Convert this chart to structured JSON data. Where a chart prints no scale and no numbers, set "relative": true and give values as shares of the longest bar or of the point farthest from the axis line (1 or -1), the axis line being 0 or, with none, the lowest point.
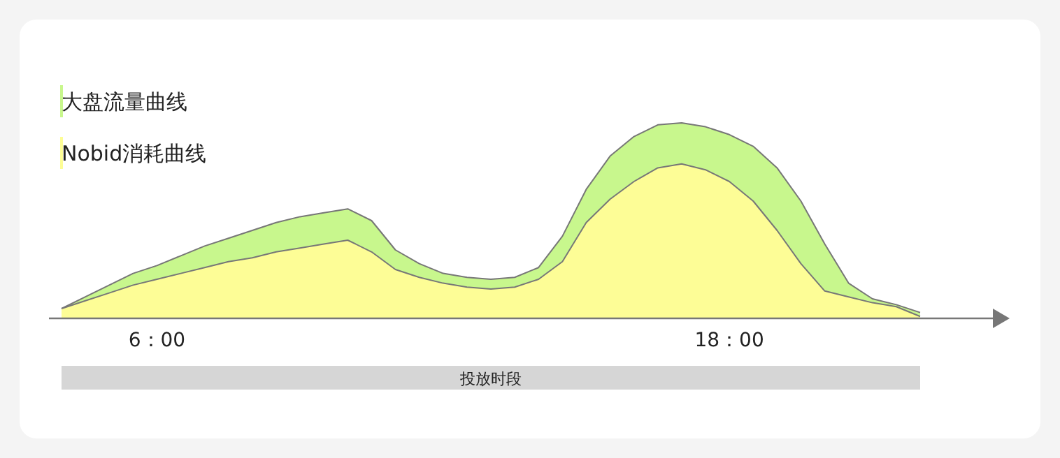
{
  "chart_data": {
    "type": "area",
    "relative": true,
    "legend": "top left",
    "categories": [
      null,
      null,
      null,
      null,
      "6：00",
      null,
      null,
      null,
      null,
      null,
      null,
      null,
      null,
      null,
      null,
      null,
      null,
      null,
      null,
      null,
      null,
      null,
      null,
      null,
      null,
      null,
      null,
      null,
      "18：00",
      null,
      null,
      null,
      null,
      null,
      null,
      null,
      null
    ],
    "annotations": [
      "投放时段"
    ],
    "series": [
      {
        "name": "大盘流量曲线",
        "color": "#c8f78d",
        "values": [
          0.05,
          0.11,
          0.17,
          0.23,
          0.27,
          0.32,
          0.37,
          0.41,
          0.45,
          0.49,
          0.52,
          0.54,
          0.56,
          0.5,
          0.35,
          0.28,
          0.23,
          0.21,
          0.2,
          0.21,
          0.26,
          0.42,
          0.66,
          0.83,
          0.93,
          0.99,
          1.0,
          0.98,
          0.94,
          0.88,
          0.77,
          0.6,
          0.38,
          0.18,
          0.1,
          0.07,
          0.03
        ]
      },
      {
        "name": "Nobid消耗曲线",
        "color": "#fdfd96",
        "values": [
          0.05,
          0.09,
          0.13,
          0.17,
          0.2,
          0.23,
          0.26,
          0.29,
          0.31,
          0.34,
          0.36,
          0.38,
          0.4,
          0.34,
          0.25,
          0.21,
          0.18,
          0.16,
          0.15,
          0.16,
          0.2,
          0.29,
          0.49,
          0.61,
          0.7,
          0.77,
          0.79,
          0.76,
          0.7,
          0.6,
          0.45,
          0.28,
          0.14,
          0.11,
          0.08,
          0.06,
          0.01
        ]
      }
    ]
  }
}
